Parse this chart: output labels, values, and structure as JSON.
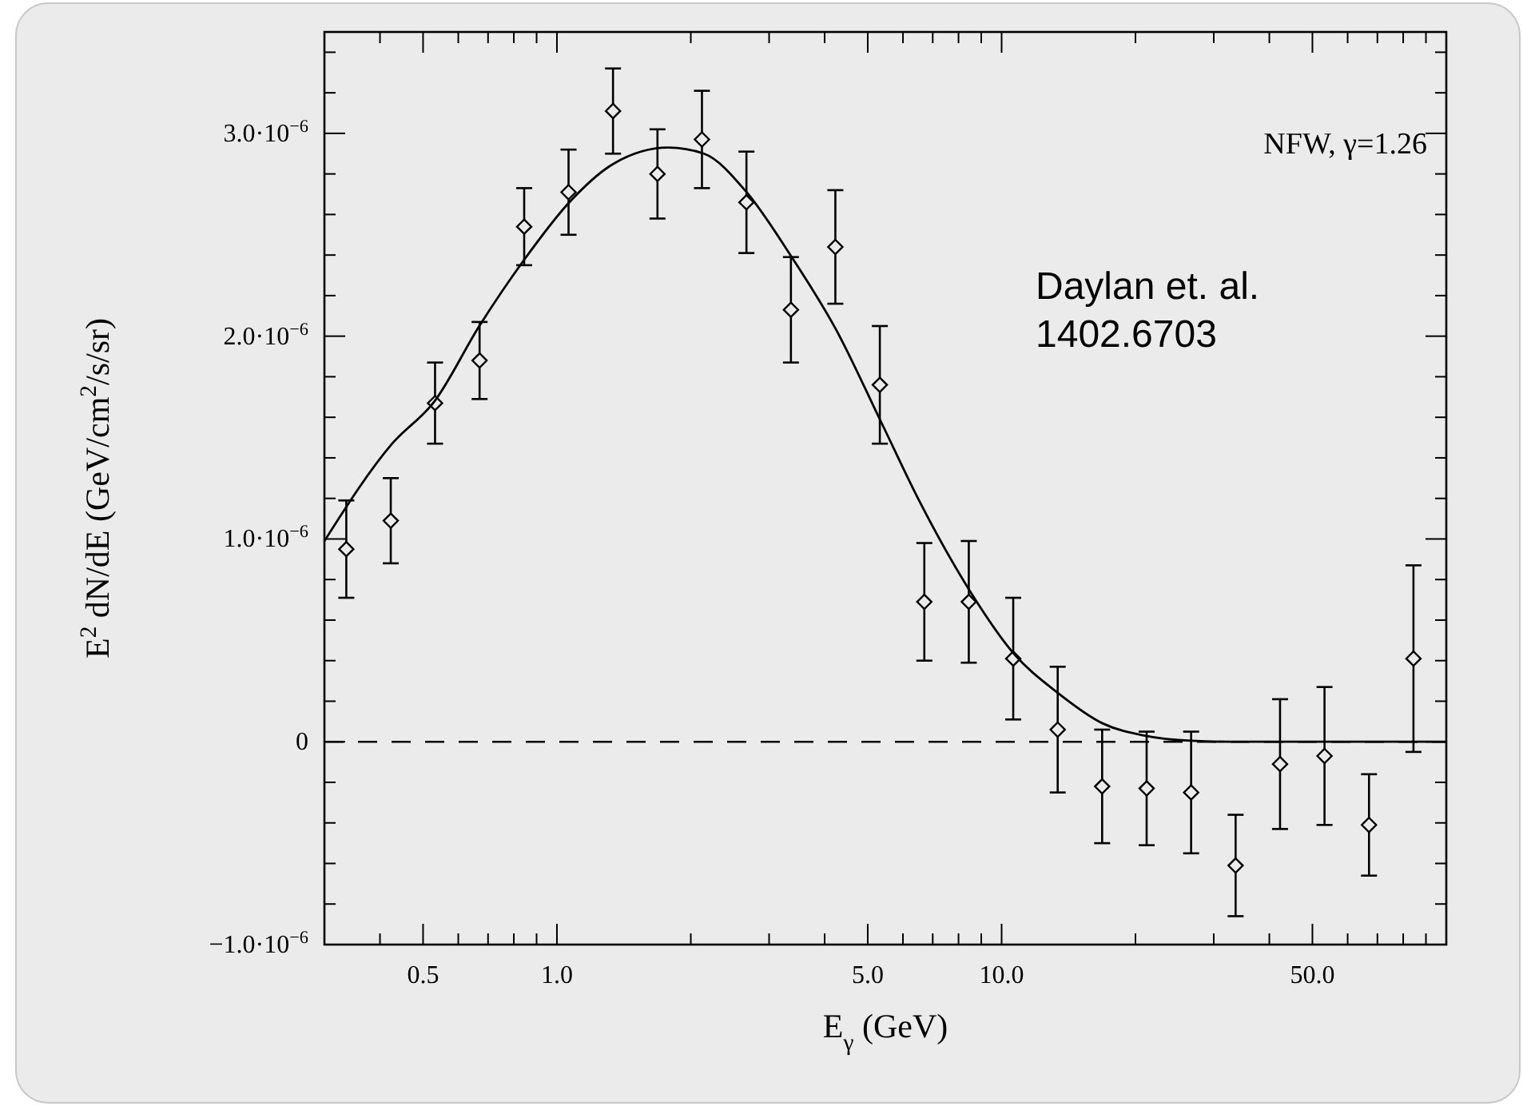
{
  "chart_data": {
    "type": "scatter",
    "xlabel": "E$_{γ}$ (GeV)",
    "ylabel": "E$^{2}$ dN/dE (GeV/cm$^{2}$/s/sr)",
    "log": "x",
    "grid": false,
    "xlim": [
      0.3,
      100
    ],
    "ylim": [
      -1e-06,
      3.5e-06
    ],
    "xticks": [
      {
        "value": 0.4,
        "label": null
      },
      {
        "value": 0.5,
        "label": "0.5"
      },
      {
        "value": 0.6,
        "label": null
      },
      {
        "value": 0.7,
        "label": null
      },
      {
        "value": 0.8,
        "label": null
      },
      {
        "value": 0.9,
        "label": null
      },
      {
        "value": 1,
        "label": "1.0"
      },
      {
        "value": 2,
        "label": null
      },
      {
        "value": 3,
        "label": null
      },
      {
        "value": 4,
        "label": null
      },
      {
        "value": 5,
        "label": "5.0"
      },
      {
        "value": 6,
        "label": null
      },
      {
        "value": 7,
        "label": null
      },
      {
        "value": 8,
        "label": null
      },
      {
        "value": 9,
        "label": null
      },
      {
        "value": 10,
        "label": "10.0"
      },
      {
        "value": 20,
        "label": null
      },
      {
        "value": 30,
        "label": null
      },
      {
        "value": 40,
        "label": null
      },
      {
        "value": 50,
        "label": "50.0"
      },
      {
        "value": 60,
        "label": null
      },
      {
        "value": 70,
        "label": null
      },
      {
        "value": 80,
        "label": null
      },
      {
        "value": 90,
        "label": null
      }
    ],
    "yticks": [
      {
        "value": -1e-06,
        "label": "−1.0·10$^{−6}$"
      },
      {
        "value": -8e-07,
        "label": null
      },
      {
        "value": -6e-07,
        "label": null
      },
      {
        "value": -4e-07,
        "label": null
      },
      {
        "value": -2e-07,
        "label": null
      },
      {
        "value": 0,
        "label": "0"
      },
      {
        "value": 2e-07,
        "label": null
      },
      {
        "value": 4e-07,
        "label": null
      },
      {
        "value": 6e-07,
        "label": null
      },
      {
        "value": 8e-07,
        "label": null
      },
      {
        "value": 1e-06,
        "label": "1.0·10$^{−6}$"
      },
      {
        "value": 1.2e-06,
        "label": null
      },
      {
        "value": 1.4e-06,
        "label": null
      },
      {
        "value": 1.6e-06,
        "label": null
      },
      {
        "value": 1.8e-06,
        "label": null
      },
      {
        "value": 2e-06,
        "label": "2.0·10$^{−6}$"
      },
      {
        "value": 2.2e-06,
        "label": null
      },
      {
        "value": 2.4e-06,
        "label": null
      },
      {
        "value": 2.6e-06,
        "label": null
      },
      {
        "value": 2.8e-06,
        "label": null
      },
      {
        "value": 3e-06,
        "label": "3.0·10$^{−6}$"
      },
      {
        "value": 3.2e-06,
        "label": null
      },
      {
        "value": 3.4e-06,
        "label": null
      }
    ],
    "ref_lines": [
      {
        "axis": "y",
        "value": 0,
        "line_style": "dashed",
        "color": "#000000"
      }
    ],
    "annotations": [
      "NFW, γ=1.26",
      "Daylan et. al.\n1402.6703"
    ],
    "series": [
      {
        "marker": "diamond",
        "color": "#000000",
        "x": [
          0.336,
          0.423,
          0.532,
          0.67,
          0.844,
          1.062,
          1.337,
          1.683,
          2.119,
          2.668,
          3.359,
          4.228,
          5.323,
          6.702,
          8.437,
          10.62,
          13.37,
          16.83,
          21.19,
          26.68,
          33.59,
          42.28,
          53.23,
          67.02,
          84.37
        ],
        "values": [
          9.5e-07,
          1.09e-06,
          1.67e-06,
          1.88e-06,
          2.54e-06,
          2.71e-06,
          3.11e-06,
          2.8e-06,
          2.97e-06,
          2.66e-06,
          2.13e-06,
          2.44e-06,
          1.76e-06,
          6.9e-07,
          6.9e-07,
          4.1e-07,
          6e-08,
          -2.2e-07,
          -2.3e-07,
          -2.5e-07,
          -6.1e-07,
          -1.1e-07,
          -7e-08,
          -4.1e-07,
          4.1e-07
        ],
        "errors": [
          2.4e-07,
          2.1e-07,
          2e-07,
          1.9e-07,
          1.9e-07,
          2.1e-07,
          2.1e-07,
          2.2e-07,
          2.4e-07,
          2.5e-07,
          2.6e-07,
          2.8e-07,
          2.9e-07,
          2.9e-07,
          3e-07,
          3e-07,
          3.1e-07,
          2.8e-07,
          2.8e-07,
          3e-07,
          2.5e-07,
          3.2e-07,
          3.4e-07,
          2.5e-07,
          4.6e-07
        ]
      },
      {
        "type": "line",
        "marker": "none",
        "line_style": "solid",
        "color": "#000000",
        "x": [
          0.3,
          0.426,
          0.531,
          0.669,
          0.846,
          1.066,
          1.34,
          1.78,
          2.14,
          2.67,
          3.35,
          4.25,
          5.35,
          6.52,
          8.45,
          10.6,
          13.4,
          16.9,
          21.0,
          26.7,
          33.6,
          100
        ],
        "values": [
          9.9e-07,
          1.47e-06,
          1.68e-06,
          2.05e-06,
          2.38e-06,
          2.66e-06,
          2.85e-06,
          2.93e-06,
          2.9e-06,
          2.71e-06,
          2.4e-06,
          2.03e-06,
          1.58e-06,
          1.19e-06,
          7.5e-07,
          4.4e-07,
          2.4e-07,
          9e-08,
          3e-08,
          5e-09,
          0,
          0
        ]
      }
    ]
  }
}
